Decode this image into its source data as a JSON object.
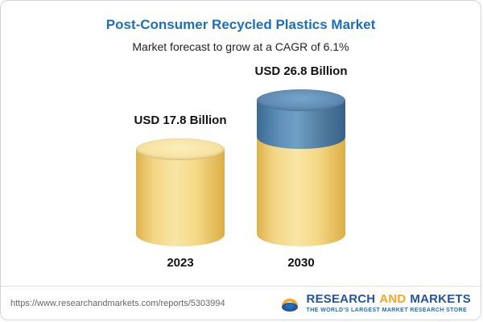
{
  "chart_data": {
    "type": "bar",
    "title": "Post-Consumer Recycled Plastics Market",
    "subtitle": "Market forecast to grow at a CAGR of 6.1%",
    "categories": [
      "2023",
      "2030"
    ],
    "values": [
      17.8,
      26.8
    ],
    "value_labels": [
      "USD 17.8 Billion",
      "USD 26.8 Billion"
    ],
    "unit": "USD Billion",
    "cagr": "6.1%",
    "colors": {
      "base_segment": "#f3d685",
      "growth_segment": "#5d8fb8",
      "title_accent": "#1d70b7"
    },
    "note": "2030 cylinder shows growth segment (blue) stacked above 2023 base value (yellow)"
  },
  "footer": {
    "url": "https://www.researchandmarkets.com/reports/5303994",
    "logo": {
      "research": "RESEARCH",
      "and": "AND",
      "markets": "MARKETS",
      "tagline": "THE WORLD'S LARGEST MARKET RESEARCH STORE"
    }
  }
}
